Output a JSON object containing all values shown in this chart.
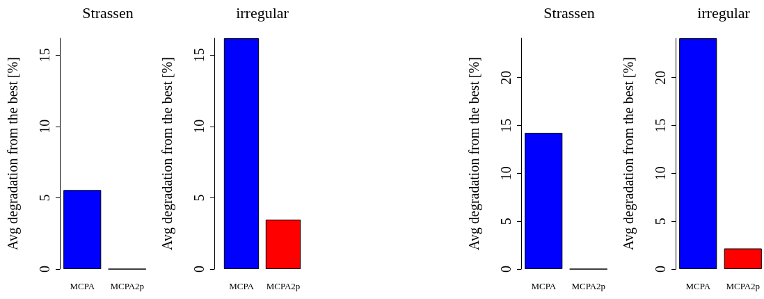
{
  "chart_data": [
    {
      "type": "bar",
      "title": "Strassen",
      "ylabel": "Avg degradation from the best [%]",
      "categories": [
        "MCPA",
        "MCPA2p"
      ],
      "values": [
        5.54,
        0
      ],
      "colors": [
        "#0000ff",
        "#ff0000"
      ],
      "ylim": [
        0,
        16.18
      ],
      "yticks": [
        0,
        5,
        10,
        15
      ]
    },
    {
      "type": "bar",
      "title": "irregular",
      "ylabel": "Avg degradation from the best [%]",
      "categories": [
        "MCPA",
        "MCPA2p"
      ],
      "values": [
        16.18,
        3.47
      ],
      "colors": [
        "#0000ff",
        "#ff0000"
      ],
      "ylim": [
        0,
        16.18
      ],
      "yticks": [
        0,
        5,
        10,
        15
      ]
    },
    {
      "type": "bar",
      "title": "Strassen",
      "ylabel": "Avg degradation from the best [%]",
      "categories": [
        "MCPA",
        "MCPA2p"
      ],
      "values": [
        14.24,
        0
      ],
      "colors": [
        "#0000ff",
        "#ff0000"
      ],
      "ylim": [
        0,
        24.12
      ],
      "yticks": [
        0,
        5,
        10,
        15,
        20
      ]
    },
    {
      "type": "bar",
      "title": "irregular",
      "ylabel": "Avg degradation from the best [%]",
      "categories": [
        "MCPA",
        "MCPA2p"
      ],
      "values": [
        24.12,
        2.15
      ],
      "colors": [
        "#0000ff",
        "#ff0000"
      ],
      "ylim": [
        0,
        24.12
      ],
      "yticks": [
        0,
        5,
        10,
        15,
        20
      ]
    }
  ]
}
